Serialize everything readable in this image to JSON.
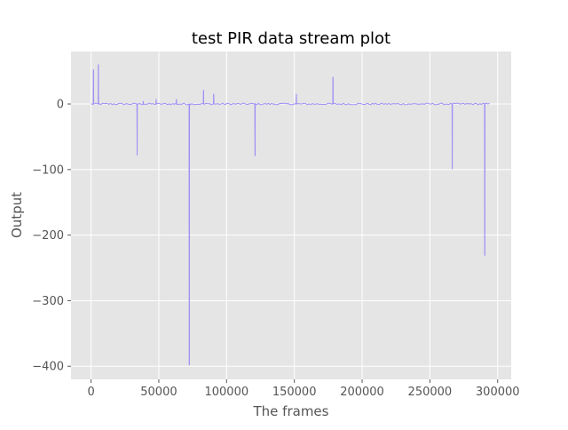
{
  "chart_data": {
    "type": "line",
    "title": "test PIR data stream plot",
    "xlabel": "The frames",
    "ylabel": "Output",
    "xlim": [
      -14800,
      310000
    ],
    "ylim": [
      -420,
      80
    ],
    "x_ticks": [
      0,
      50000,
      100000,
      150000,
      200000,
      250000,
      300000
    ],
    "x_tick_labels": [
      "0",
      "50000",
      "100000",
      "150000",
      "200000",
      "250000",
      "300000"
    ],
    "y_ticks": [
      0,
      -100,
      -200,
      -300,
      -400
    ],
    "y_tick_labels": [
      "0",
      "−100",
      "−200",
      "−300",
      "−400"
    ],
    "grid": true,
    "style": "ggplot",
    "line_color": "#9f8ff5",
    "baseline": 0,
    "x_range": [
      0,
      295000
    ],
    "series": [
      {
        "spikes": [
          {
            "x": 1800,
            "y": 52
          },
          {
            "x": 5400,
            "y": 60
          },
          {
            "x": 34000,
            "y": -78
          },
          {
            "x": 38500,
            "y": 4
          },
          {
            "x": 48000,
            "y": 7
          },
          {
            "x": 63000,
            "y": 7
          },
          {
            "x": 72500,
            "y": -398
          },
          {
            "x": 83000,
            "y": 21
          },
          {
            "x": 90500,
            "y": 15
          },
          {
            "x": 121000,
            "y": -79
          },
          {
            "x": 151500,
            "y": 15
          },
          {
            "x": 178500,
            "y": 41
          },
          {
            "x": 266500,
            "y": -99
          },
          {
            "x": 290500,
            "y": -231
          }
        ]
      }
    ]
  }
}
